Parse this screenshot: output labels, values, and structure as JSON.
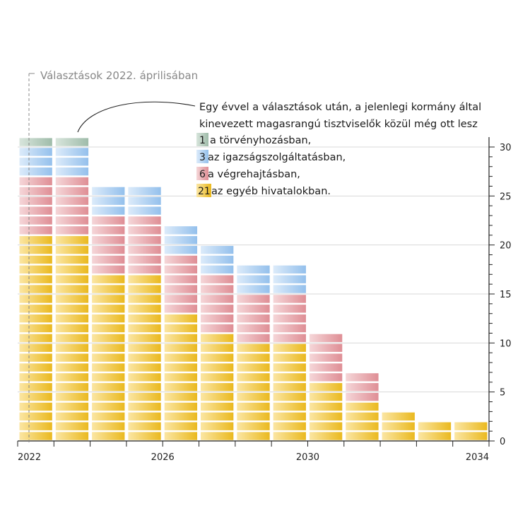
{
  "chart_data": {
    "type": "bar",
    "stacked": true,
    "x": [
      2022,
      2023,
      2024,
      2025,
      2026,
      2027,
      2028,
      2029,
      2030,
      2031,
      2032,
      2033,
      2034
    ],
    "xtick_labels": [
      "2022",
      "2026",
      "2030",
      "2034"
    ],
    "series": [
      {
        "name": "az egyéb hivatalokban",
        "color": "#f3c43a",
        "values": [
          21,
          21,
          17,
          17,
          13,
          11,
          10,
          10,
          6,
          4,
          3,
          2,
          2
        ]
      },
      {
        "name": "a végrehajtásban",
        "color": "#e8a3a8",
        "values": [
          6,
          6,
          6,
          6,
          6,
          6,
          5,
          5,
          5,
          3,
          0,
          0,
          0
        ]
      },
      {
        "name": "az igazságszolgáltatásban",
        "color": "#a9cdf0",
        "values": [
          3,
          3,
          3,
          3,
          3,
          3,
          3,
          3,
          0,
          0,
          0,
          0,
          0
        ]
      },
      {
        "name": "a törvényhozásban",
        "color": "#b5cdbf",
        "values": [
          1,
          1,
          0,
          0,
          0,
          0,
          0,
          0,
          0,
          0,
          0,
          0,
          0
        ]
      }
    ],
    "ylim": [
      0,
      30
    ],
    "yticks": [
      0,
      5,
      10,
      15,
      20,
      25,
      30
    ],
    "grid": true,
    "y_axis_side": "right"
  },
  "marker": {
    "label": "Választások 2022. áprilisában"
  },
  "annotation": {
    "lines": [
      "Egy évvel a választások után, a jelenlegi kormány által",
      "kinevezett magasrangú tisztviselők közül még ott lesz"
    ],
    "legend": [
      {
        "num": "1",
        "text": "a törvényhozásban,",
        "color": "#b5cdbf"
      },
      {
        "num": "3",
        "text": "az igazságszolgáltatásban,",
        "color": "#a9cdf0"
      },
      {
        "num": "6",
        "text": "a végrehajtásban,",
        "color": "#e8a3a8"
      },
      {
        "num": "21",
        "text": "az egyéb hivatalokban.",
        "color": "#f3c43a"
      }
    ]
  }
}
